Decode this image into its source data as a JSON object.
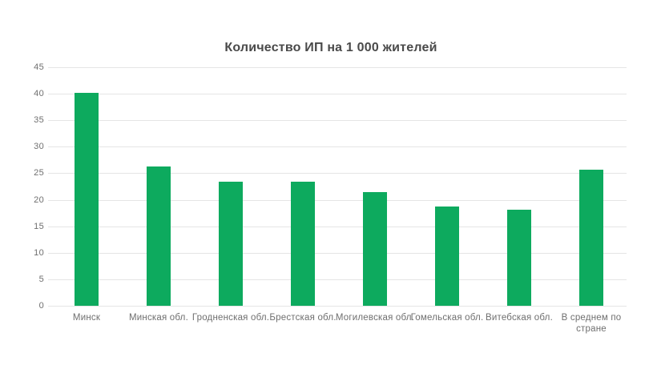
{
  "page": {
    "background": "#ffffff"
  },
  "chart_data": {
    "type": "bar",
    "title": "Количество ИП на 1 000 жителей",
    "categories": [
      "Минск",
      "Минская обл.",
      "Гродненская обл.",
      "Брестская обл.",
      "Могилевская обл.",
      "Гомельская обл.",
      "Витебская обл.",
      "В среднем по\nстране"
    ],
    "values": [
      40.1,
      26.3,
      23.4,
      23.4,
      21.4,
      18.7,
      18.1,
      25.7
    ],
    "xlabel": "",
    "ylabel": "",
    "ylim": [
      0,
      45
    ],
    "yticks": [
      0,
      5,
      10,
      15,
      20,
      25,
      30,
      35,
      40,
      45
    ],
    "grid": "horizontal",
    "legend": "none",
    "bar_color": "#0daa5e",
    "grid_color": "#e5e5e5",
    "tick_label_color": "#6f6f6f",
    "title_color": "#4a4a4a"
  }
}
